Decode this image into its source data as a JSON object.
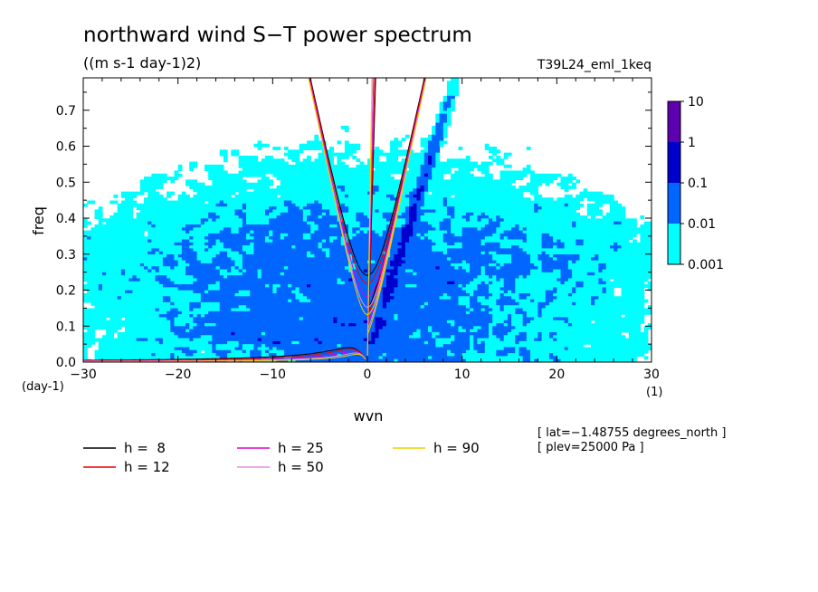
{
  "chart_data": {
    "type": "heatmap",
    "title": "northward wind S−T power spectrum",
    "units": "((m s-1 day-1)2)",
    "run_label": "T39L24_eml_1keq",
    "xlabel": "wvn",
    "ylabel": "freq",
    "x_unit": "(1)",
    "y_unit": "(day-1)",
    "xlim": [
      -30,
      30
    ],
    "ylim": [
      0,
      0.79
    ],
    "x_ticks": [
      -30,
      -20,
      -10,
      0,
      10,
      20,
      30
    ],
    "x_tick_labels": [
      "−30",
      "−20",
      "−10",
      "0",
      "10",
      "20",
      "30"
    ],
    "y_ticks": [
      0,
      0.1,
      0.2,
      0.3,
      0.4,
      0.5,
      0.6,
      0.7
    ],
    "y_tick_labels": [
      "0.0",
      "0.1",
      "0.2",
      "0.3",
      "0.4",
      "0.5",
      "0.6",
      "0.7"
    ],
    "colorbar": {
      "levels": [
        0.001,
        0.01,
        0.1,
        1,
        10
      ],
      "labels": [
        "0.001",
        "0.01",
        "0.1",
        "1",
        "10"
      ],
      "colors": [
        "#00ffff",
        "#0066ff",
        "#0000cc",
        "#5c00b0"
      ]
    },
    "series": [
      {
        "name": "h =  8",
        "equivalent_depth_m": 8,
        "color": "#000000"
      },
      {
        "name": "h = 12",
        "equivalent_depth_m": 12,
        "color": "#ee0000"
      },
      {
        "name": "h = 25",
        "equivalent_depth_m": 25,
        "color": "#dd00cc"
      },
      {
        "name": "h = 50",
        "equivalent_depth_m": 50,
        "color": "#e58fe0"
      },
      {
        "name": "h = 90",
        "equivalent_depth_m": 90,
        "color": "#f0d000"
      }
    ],
    "dispersion_curves": [
      "kelvin",
      "n1_inertia_gravity",
      "n1_rossby",
      "mixed_rossby_gravity"
    ],
    "annotations": [
      "[ lat=−1.48755 degrees_north ]",
      "[ plev=25000 Pa ]"
    ]
  }
}
